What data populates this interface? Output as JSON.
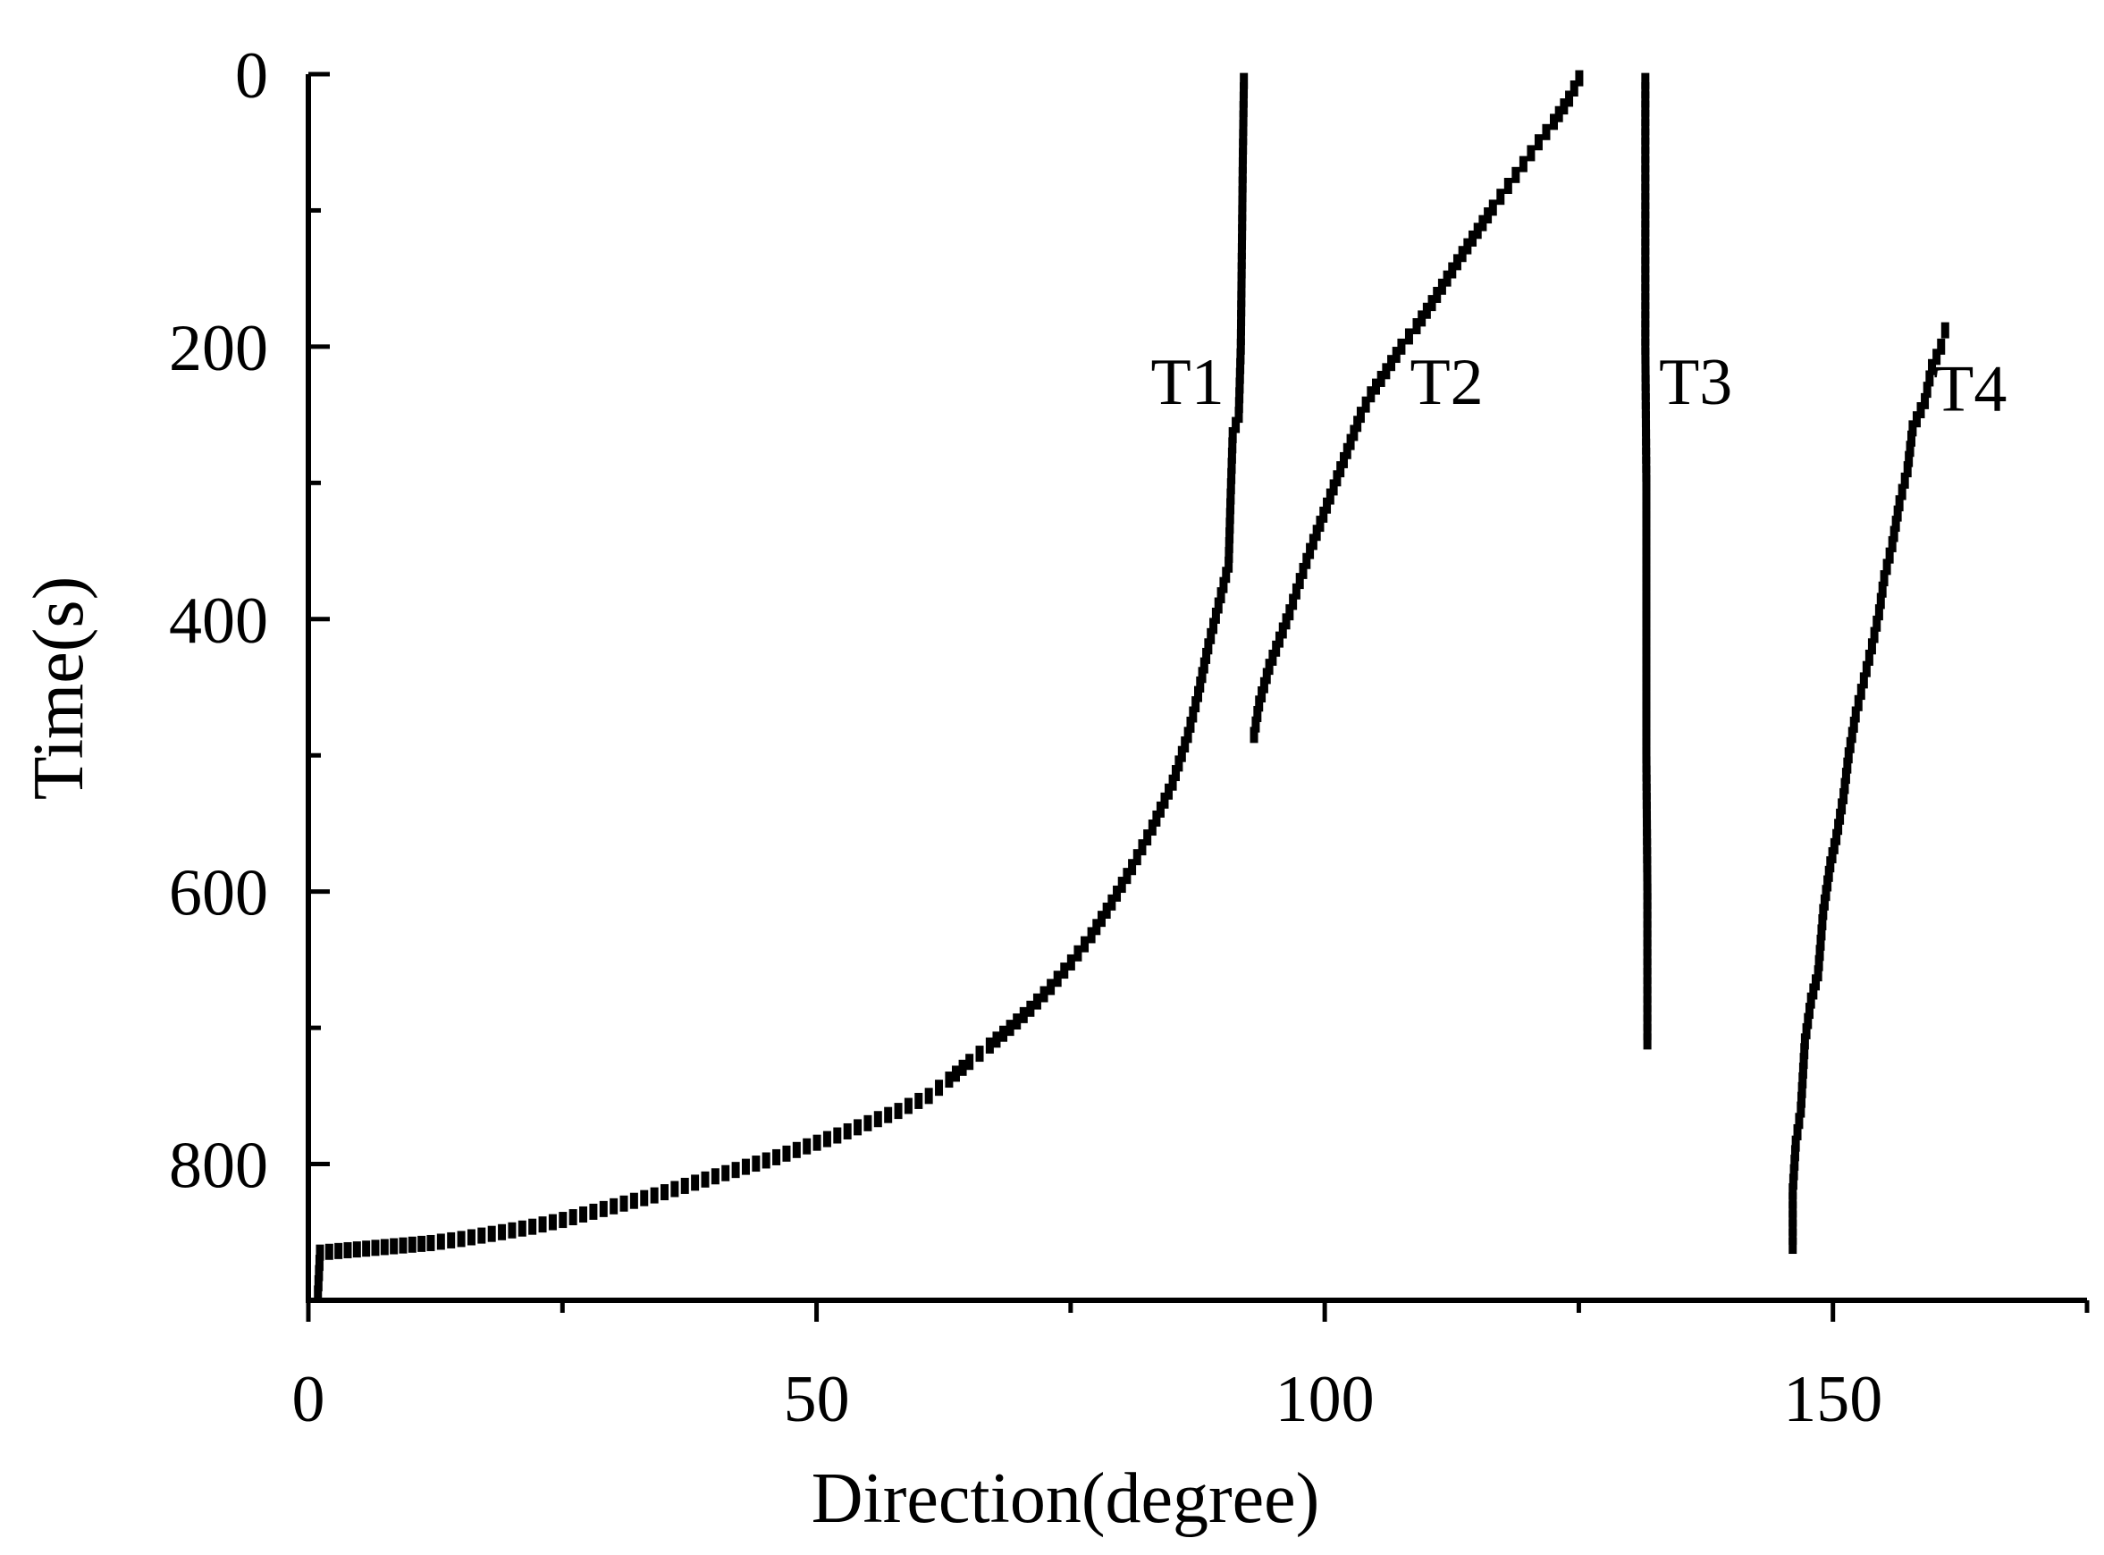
{
  "chart_data": {
    "type": "scatter",
    "xlabel": "Direction(degree)",
    "ylabel": "Time(s)",
    "xlim": [
      0,
      175
    ],
    "ylim": [
      0,
      900
    ],
    "y_inverted": true,
    "grid": false,
    "xticks": [
      0,
      50,
      100,
      150
    ],
    "yticks": [
      0,
      200,
      400,
      600,
      800
    ],
    "x_minor_step": 25,
    "y_minor_step": 100,
    "x_tick_labels": [
      "0",
      "50",
      "100",
      "150"
    ],
    "y_tick_labels": [
      "0",
      "200",
      "400",
      "600",
      "800"
    ],
    "color": "#000000",
    "series": [
      {
        "name": "T1",
        "label_at": [
          86.5,
          225
        ],
        "points": [
          [
            0.9,
            895
          ],
          [
            1.0,
            880
          ],
          [
            1.1,
            865
          ],
          [
            12,
            858
          ],
          [
            15,
            855
          ],
          [
            19,
            850
          ],
          [
            22,
            846
          ],
          [
            25,
            841
          ],
          [
            28,
            835
          ],
          [
            31,
            829
          ],
          [
            34,
            823
          ],
          [
            37,
            816
          ],
          [
            40,
            809
          ],
          [
            43,
            802
          ],
          [
            46,
            795
          ],
          [
            49,
            787
          ],
          [
            52,
            779
          ],
          [
            55,
            770
          ],
          [
            58,
            761
          ],
          [
            61,
            750
          ],
          [
            63,
            738
          ],
          [
            65,
            725
          ],
          [
            67,
            713
          ],
          [
            69,
            700
          ],
          [
            71,
            686
          ],
          [
            73,
            670
          ],
          [
            75,
            652
          ],
          [
            77,
            632
          ],
          [
            79,
            608
          ],
          [
            81,
            582
          ],
          [
            83,
            553
          ],
          [
            85,
            520
          ],
          [
            86.5,
            485
          ],
          [
            87.5,
            455
          ],
          [
            88.5,
            420
          ],
          [
            89.5,
            390
          ],
          [
            90.5,
            360
          ],
          [
            90.7,
            310
          ],
          [
            90.9,
            265
          ],
          [
            91.5,
            250
          ],
          [
            91.7,
            200
          ],
          [
            91.8,
            130
          ],
          [
            91.9,
            60
          ],
          [
            92.0,
            5
          ]
        ]
      },
      {
        "name": "T2",
        "label_at": [
          112,
          225
        ],
        "points": [
          [
            93,
            485
          ],
          [
            93.5,
            462
          ],
          [
            94.5,
            435
          ],
          [
            95.5,
            415
          ],
          [
            96.5,
            395
          ],
          [
            97.5,
            372
          ],
          [
            98.5,
            350
          ],
          [
            99.5,
            330
          ],
          [
            100.5,
            310
          ],
          [
            101.5,
            290
          ],
          [
            102.5,
            270
          ],
          [
            103.5,
            250
          ],
          [
            104.5,
            235
          ],
          [
            106,
            218
          ],
          [
            107.5,
            200
          ],
          [
            109,
            185
          ],
          [
            110.5,
            168
          ],
          [
            112,
            150
          ],
          [
            113.5,
            132
          ],
          [
            115,
            115
          ],
          [
            116.5,
            98
          ],
          [
            118,
            82
          ],
          [
            119.5,
            66
          ],
          [
            121,
            50
          ],
          [
            122.5,
            35
          ],
          [
            124,
            18
          ],
          [
            125,
            3
          ]
        ]
      },
      {
        "name": "T3",
        "label_at": [
          136.5,
          225
        ],
        "points": [
          [
            131.5,
            5
          ],
          [
            131.5,
            100
          ],
          [
            131.5,
            200
          ],
          [
            131.6,
            300
          ],
          [
            131.6,
            400
          ],
          [
            131.6,
            500
          ],
          [
            131.7,
            600
          ],
          [
            131.7,
            710
          ]
        ]
      },
      {
        "name": "T4",
        "label_at": [
          163.5,
          230
        ],
        "points": [
          [
            146,
            860
          ],
          [
            146,
            820
          ],
          [
            146.3,
            785
          ],
          [
            146.8,
            760
          ],
          [
            147.2,
            710
          ],
          [
            147.8,
            680
          ],
          [
            148.5,
            660
          ],
          [
            149,
            615
          ],
          [
            149.7,
            580
          ],
          [
            150.3,
            560
          ],
          [
            151,
            530
          ],
          [
            151.5,
            500
          ],
          [
            152.2,
            470
          ],
          [
            153,
            445
          ],
          [
            153.8,
            420
          ],
          [
            154.5,
            395
          ],
          [
            155,
            370
          ],
          [
            155.8,
            345
          ],
          [
            156.5,
            315
          ],
          [
            157.3,
            290
          ],
          [
            157.8,
            260
          ],
          [
            159,
            240
          ],
          [
            159.7,
            215
          ],
          [
            160.6,
            200
          ],
          [
            161,
            188
          ]
        ]
      }
    ]
  }
}
